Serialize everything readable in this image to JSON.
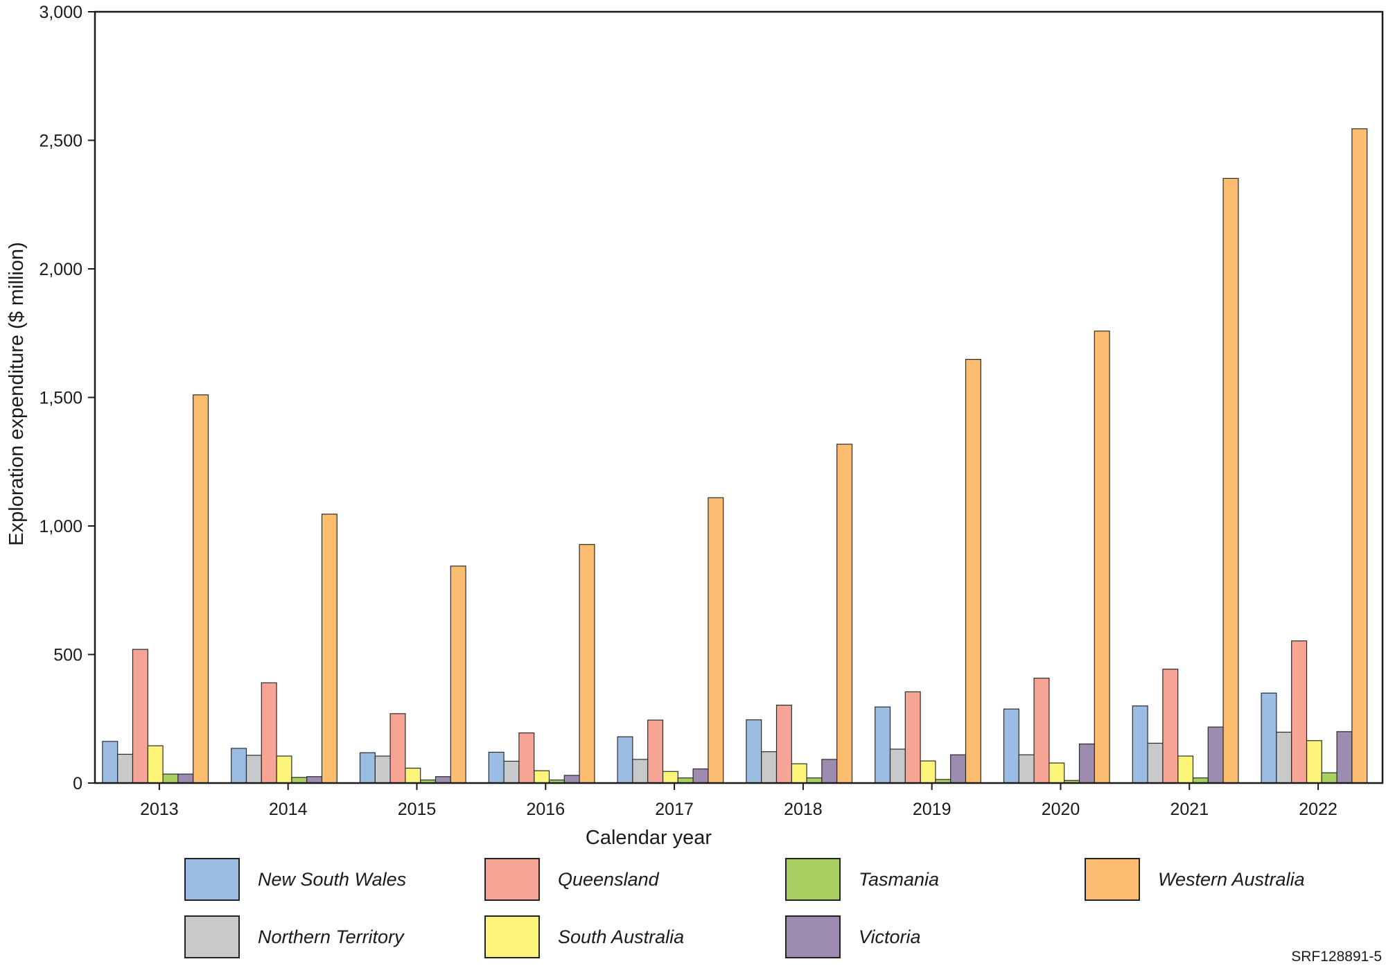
{
  "chart_data": {
    "type": "bar",
    "title": "",
    "xlabel": "Calendar year",
    "ylabel": "Exploration expenditure ($ million)",
    "ylim": [
      0,
      3000
    ],
    "yticks": [
      0,
      500,
      1000,
      1500,
      2000,
      2500,
      3000
    ],
    "ytick_labels": [
      "0",
      "500",
      "1,000",
      "1,500",
      "2,000",
      "2,500",
      "3,000"
    ],
    "categories": [
      "2013",
      "2014",
      "2015",
      "2016",
      "2017",
      "2018",
      "2019",
      "2020",
      "2021",
      "2022"
    ],
    "series": [
      {
        "name": "New South Wales",
        "color": "#9bbde4",
        "values": [
          162,
          135,
          118,
          120,
          180,
          246,
          296,
          288,
          300,
          350
        ]
      },
      {
        "name": "Northern Territory",
        "color": "#c8c9cb",
        "values": [
          112,
          108,
          105,
          85,
          92,
          122,
          132,
          110,
          155,
          198
        ]
      },
      {
        "name": "South Australia",
        "color": "#fdf47a",
        "values": [
          145,
          105,
          58,
          48,
          45,
          75,
          86,
          78,
          105,
          165
        ]
      },
      {
        "name": "Tasmania",
        "color": "#a8d060",
        "values": [
          35,
          22,
          12,
          12,
          20,
          20,
          14,
          10,
          20,
          40
        ]
      },
      {
        "name": "Victoria",
        "color": "#9d8cb0",
        "values": [
          35,
          25,
          25,
          30,
          55,
          92,
          110,
          152,
          218,
          200
        ]
      },
      {
        "name": "Queensland",
        "color": "#f6a595",
        "values": [
          520,
          390,
          270,
          195,
          245,
          303,
          355,
          408,
          443,
          553
        ]
      },
      {
        "name": "Western Australia",
        "color": "#fcbe6e",
        "values": [
          1510,
          1046,
          844,
          928,
          1110,
          1318,
          1648,
          1758,
          2352,
          2545
        ]
      }
    ],
    "legend": {
      "position": "bottom",
      "entries": [
        "New South Wales",
        "Queensland",
        "Tasmania",
        "Western Australia",
        "Northern Territory",
        "South Australia",
        "Victoria"
      ]
    }
  },
  "footnote": "SRF128891-5"
}
